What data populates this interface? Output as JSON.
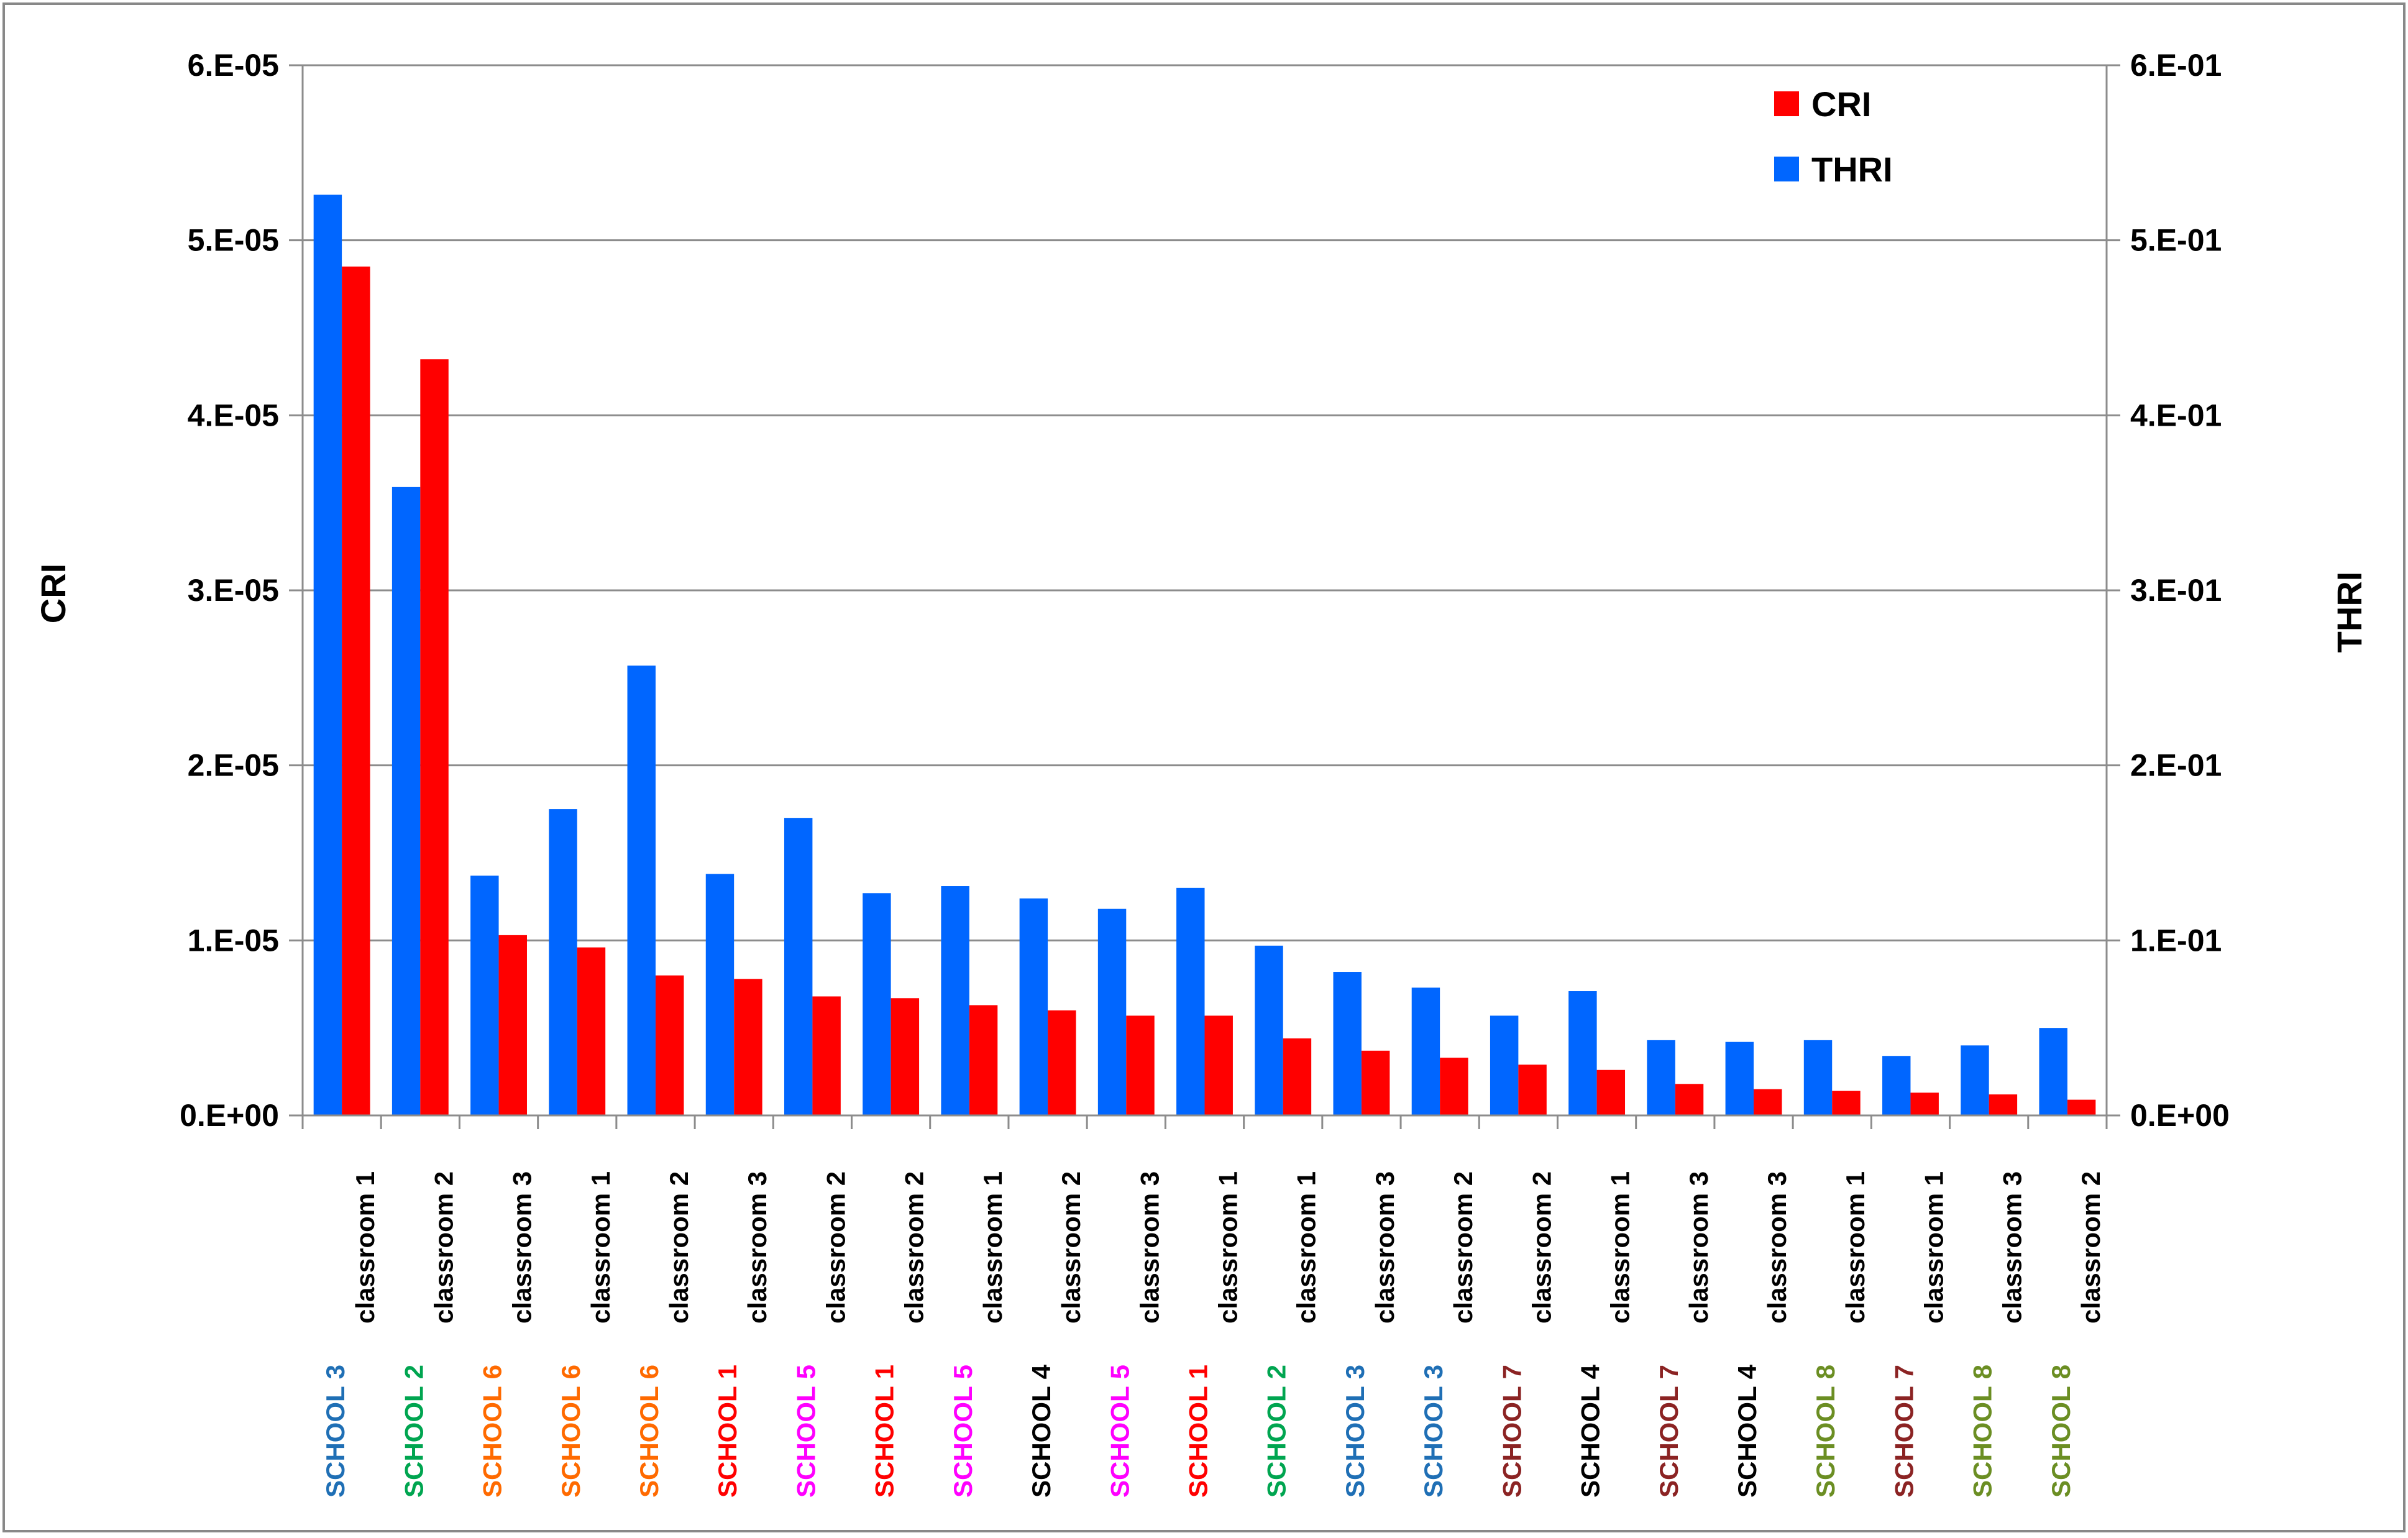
{
  "chart_data": {
    "type": "bar",
    "y_left": {
      "label": "CRI",
      "ylim": [
        0,
        6e-05
      ],
      "ticks": [
        "0.E+00",
        "1.E-05",
        "2.E-05",
        "3.E-05",
        "4.E-05",
        "5.E-05",
        "6.E-05"
      ]
    },
    "y_right": {
      "label": "THRI",
      "ylim": [
        0,
        0.6
      ],
      "ticks": [
        "0.E+00",
        "1.E-01",
        "2.E-01",
        "3.E-01",
        "4.E-01",
        "5.E-01",
        "6.E-01"
      ]
    },
    "grid": true,
    "legend_position": "top-right",
    "categories": [
      {
        "school": "SCHOOL 3",
        "classroom": "classroom 1",
        "school_color": "#1f6fb5"
      },
      {
        "school": "SCHOOL 2",
        "classroom": "classroom 2",
        "school_color": "#00a550"
      },
      {
        "school": "SCHOOL 6",
        "classroom": "classroom 3",
        "school_color": "#ff6a00"
      },
      {
        "school": "SCHOOL 6",
        "classroom": "classroom 1",
        "school_color": "#ff6a00"
      },
      {
        "school": "SCHOOL 6",
        "classroom": "classroom 2",
        "school_color": "#ff6a00"
      },
      {
        "school": "SCHOOL 1",
        "classroom": "classroom 3",
        "school_color": "#ff0000"
      },
      {
        "school": "SCHOOL 5",
        "classroom": "classroom 2",
        "school_color": "#ff00ff"
      },
      {
        "school": "SCHOOL 1",
        "classroom": "classroom 2",
        "school_color": "#ff0000"
      },
      {
        "school": "SCHOOL 5",
        "classroom": "classroom 1",
        "school_color": "#ff00ff"
      },
      {
        "school": "SCHOOL 4",
        "classroom": "classroom 2",
        "school_color": "#000000"
      },
      {
        "school": "SCHOOL 5",
        "classroom": "classroom 3",
        "school_color": "#ff00ff"
      },
      {
        "school": "SCHOOL 1",
        "classroom": "classroom 1",
        "school_color": "#ff0000"
      },
      {
        "school": "SCHOOL 2",
        "classroom": "classroom 1",
        "school_color": "#00a550"
      },
      {
        "school": "SCHOOL 3",
        "classroom": "classroom 3",
        "school_color": "#1f6fb5"
      },
      {
        "school": "SCHOOL 3",
        "classroom": "classroom 2",
        "school_color": "#1f6fb5"
      },
      {
        "school": "SCHOOL 7",
        "classroom": "classroom 2",
        "school_color": "#8b2323"
      },
      {
        "school": "SCHOOL 4",
        "classroom": "classroom 1",
        "school_color": "#000000"
      },
      {
        "school": "SCHOOL 7",
        "classroom": "classroom 3",
        "school_color": "#8b2323"
      },
      {
        "school": "SCHOOL 4",
        "classroom": "classroom 3",
        "school_color": "#000000"
      },
      {
        "school": "SCHOOL 8",
        "classroom": "classroom 1",
        "school_color": "#6b8e23"
      },
      {
        "school": "SCHOOL 7",
        "classroom": "classroom 1",
        "school_color": "#8b2323"
      },
      {
        "school": "SCHOOL 8",
        "classroom": "classroom 3",
        "school_color": "#6b8e23"
      },
      {
        "school": "SCHOOL 8",
        "classroom": "classroom 2",
        "school_color": "#6b8e23"
      }
    ],
    "series": [
      {
        "name": "THRI",
        "axis": "right",
        "color": "#0066ff",
        "values": [
          0.526,
          0.359,
          0.137,
          0.175,
          0.257,
          0.138,
          0.17,
          0.127,
          0.131,
          0.124,
          0.118,
          0.13,
          0.097,
          0.082,
          0.073,
          0.057,
          0.071,
          0.043,
          0.042,
          0.043,
          0.034,
          0.04,
          0.05
        ]
      },
      {
        "name": "CRI",
        "axis": "left",
        "color": "#ff0000",
        "values": [
          4.85e-05,
          4.32e-05,
          1.03e-05,
          9.6e-06,
          8e-06,
          7.8e-06,
          6.8e-06,
          6.7e-06,
          6.3e-06,
          6e-06,
          5.7e-06,
          5.7e-06,
          4.4e-06,
          3.7e-06,
          3.3e-06,
          2.9e-06,
          2.6e-06,
          1.8e-06,
          1.5e-06,
          1.4e-06,
          1.3e-06,
          1.2e-06,
          9e-07
        ]
      }
    ],
    "legend": [
      {
        "name": "CRI",
        "color": "#ff0000"
      },
      {
        "name": "THRI",
        "color": "#0066ff"
      }
    ]
  }
}
